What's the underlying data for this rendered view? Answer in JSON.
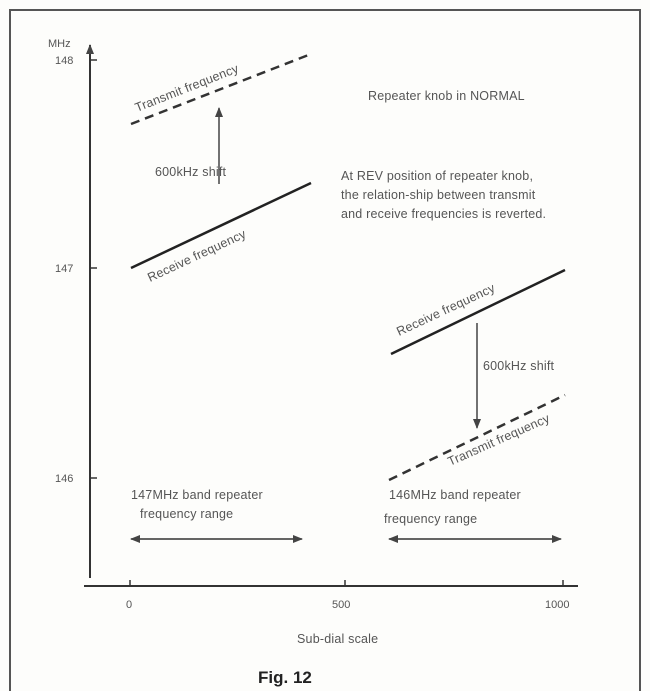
{
  "yaxis": {
    "unit": "MHz",
    "ticks": [
      "148",
      "147",
      "146"
    ]
  },
  "xaxis": {
    "ticks": [
      "0",
      "500",
      "1000"
    ],
    "label": "Sub-dial scale"
  },
  "labels": {
    "transmit_upper": "Transmit frequency",
    "receive_upper": "Receive frequency",
    "shift_upper": "600kHz  shift",
    "receive_lower": "Receive frequency",
    "transmit_lower": "Transmit frequency",
    "shift_lower": "600kHz shift"
  },
  "notes": {
    "normal": "Repeater knob in NORMAL",
    "rev_line1": "At REV position of repeater knob,",
    "rev_line2": "the relation-ship between transmit",
    "rev_line3": "and receive frequencies is reverted."
  },
  "ranges": {
    "r147_line1": "147MHz band repeater",
    "r147_line2": "frequency range",
    "r146_line1": "146MHz band repeater",
    "r146_line2": "frequency range"
  },
  "caption": "Fig. 12",
  "colors": {
    "ink": "#333333",
    "text": "#555555"
  }
}
